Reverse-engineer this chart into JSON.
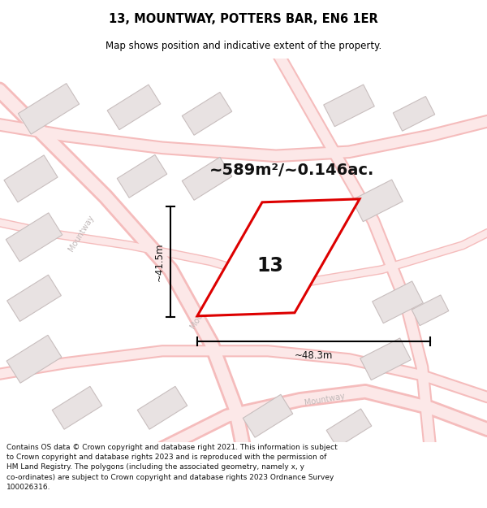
{
  "title": "13, MOUNTWAY, POTTERS BAR, EN6 1ER",
  "subtitle": "Map shows position and indicative extent of the property.",
  "area_text": "~589m²/~0.146ac.",
  "label_13": "13",
  "dim_width": "~48.3m",
  "dim_height": "~41.5m",
  "footer": "Contains OS data © Crown copyright and database right 2021. This information is subject to Crown copyright and database rights 2023 and is reproduced with the permission of HM Land Registry. The polygons (including the associated geometry, namely x, y co-ordinates) are subject to Crown copyright and database rights 2023 Ordnance Survey 100026316.",
  "map_bg": "#faf7f7",
  "road_color_inner": "#fce8e8",
  "road_color_outer": "#f5bcbc",
  "building_fill": "#e8e2e2",
  "building_stroke": "#c8bebe",
  "plot_stroke": "#dd0000",
  "plot_fill": "white",
  "road_label_color": "#c0b8b8",
  "title_color": "#000000",
  "figsize": [
    6.0,
    6.25
  ],
  "dpi": 100
}
